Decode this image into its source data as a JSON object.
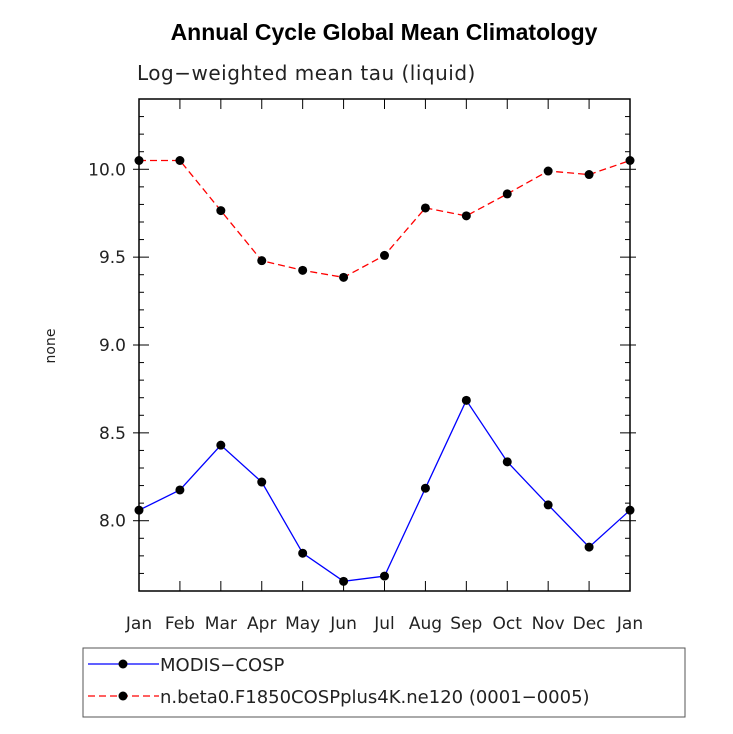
{
  "chart_data": {
    "type": "line",
    "title": "Annual Cycle Global Mean Climatology",
    "subtitle": "Log−weighted mean tau (liquid)",
    "xlabel": "",
    "ylabel": "none",
    "categories": [
      "Jan",
      "Feb",
      "Mar",
      "Apr",
      "May",
      "Jun",
      "Jul",
      "Aug",
      "Sep",
      "Oct",
      "Nov",
      "Dec",
      "Jan"
    ],
    "ylim": [
      7.6,
      10.4
    ],
    "yticks": [
      8.0,
      8.5,
      9.0,
      9.5,
      10.0
    ],
    "ytick_labels": [
      "8.0",
      "8.5",
      "9.0",
      "9.5",
      "10.0"
    ],
    "legend_position": "bottom",
    "series": [
      {
        "name": "MODIS−COSP",
        "color": "#0000ff",
        "style": "solid",
        "values": [
          8.06,
          8.175,
          8.43,
          8.22,
          7.815,
          7.655,
          7.685,
          8.185,
          8.685,
          8.335,
          8.09,
          7.85,
          8.06
        ]
      },
      {
        "name": "n.beta0.F1850COSPplus4K.ne120 (0001−0005)",
        "color": "#ff0000",
        "style": "dashed",
        "values": [
          10.05,
          10.05,
          9.765,
          9.48,
          9.425,
          9.385,
          9.51,
          9.78,
          9.735,
          9.86,
          9.99,
          9.97,
          10.05
        ]
      }
    ]
  }
}
